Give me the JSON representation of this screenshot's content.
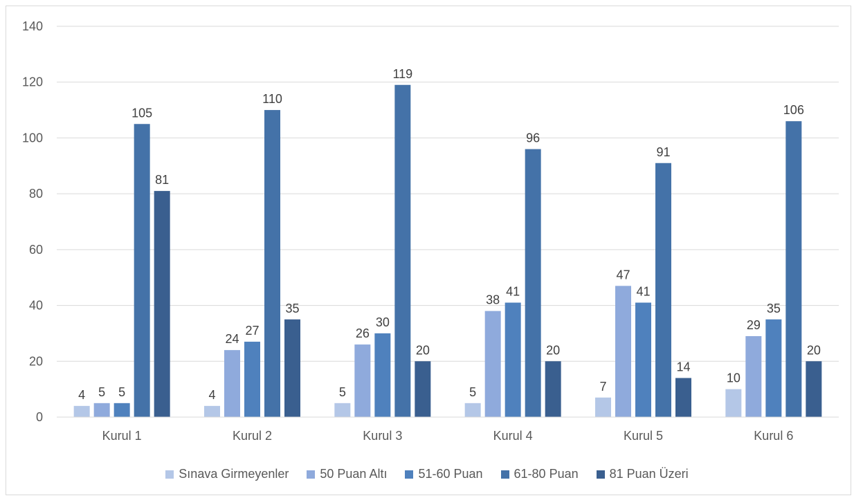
{
  "chart_data": {
    "type": "bar",
    "categories": [
      "Kurul 1",
      "Kurul 2",
      "Kurul 3",
      "Kurul 4",
      "Kurul 5",
      "Kurul 6"
    ],
    "series": [
      {
        "name": "Sınava Girmeyenler",
        "color": "#b4c7e7",
        "values": [
          4,
          4,
          5,
          5,
          7,
          10
        ]
      },
      {
        "name": "50 Puan Altı",
        "color": "#8faadc",
        "values": [
          5,
          24,
          26,
          38,
          47,
          29
        ]
      },
      {
        "name": "51-60 Puan",
        "color": "#4f81bd",
        "values": [
          5,
          27,
          30,
          41,
          41,
          35
        ]
      },
      {
        "name": "61-80 Puan",
        "color": "#4472a8",
        "values": [
          105,
          110,
          119,
          96,
          91,
          106
        ]
      },
      {
        "name": "81 Puan Üzeri",
        "color": "#3a5f8f",
        "values": [
          81,
          35,
          20,
          20,
          14,
          20
        ]
      }
    ],
    "yticks": [
      "0",
      "20",
      "40",
      "60",
      "80",
      "100",
      "120",
      "140"
    ],
    "ylim": [
      0,
      140
    ],
    "grid": true,
    "legend_position": "bottom",
    "data_labels": true
  }
}
